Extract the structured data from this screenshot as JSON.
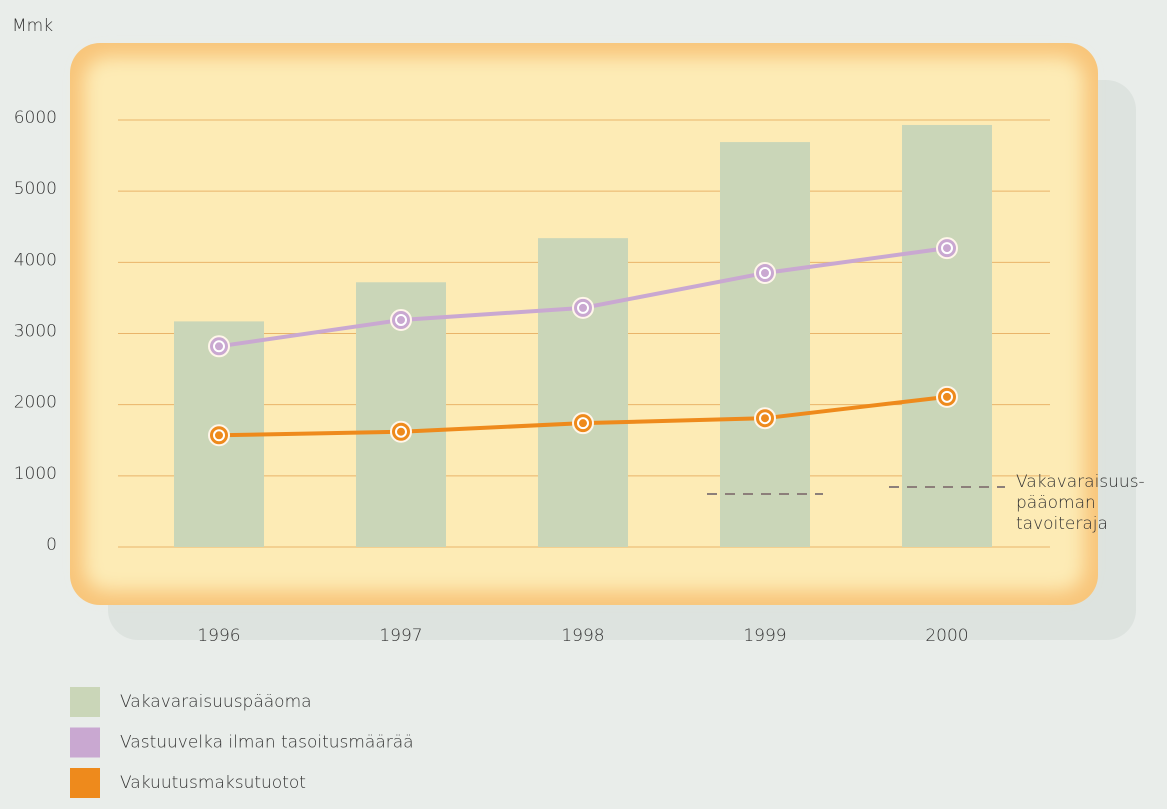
{
  "chart_data": {
    "type": "bar-line",
    "y_label": "Mmk",
    "categories": [
      "1996",
      "1997",
      "1998",
      "1999",
      "2000"
    ],
    "ylim": [
      0,
      6000
    ],
    "yticks": [
      0,
      1000,
      2000,
      3000,
      4000,
      5000,
      6000
    ],
    "grid": true,
    "series": [
      {
        "name": "Vakavaraisuuspääoma",
        "kind": "bar",
        "color": "#cad6b8",
        "values": [
          3170,
          3720,
          4340,
          5690,
          5930
        ]
      },
      {
        "name": "Vastuuvelka ilman tasoitusmäärää",
        "kind": "line",
        "color": "#c9a8d1",
        "values": [
          2820,
          3190,
          3360,
          3850,
          4200
        ]
      },
      {
        "name": "Vakuutusmaksutuotot",
        "kind": "line",
        "color": "#ee8a1c",
        "values": [
          1570,
          1620,
          1740,
          1810,
          2110
        ]
      }
    ],
    "reference": {
      "color": "#8c7f7a",
      "values": [
        null,
        null,
        null,
        745,
        843
      ],
      "label_lines": [
        "Vakavaraisuus-",
        "pääoman",
        "tavoiteraja"
      ]
    }
  }
}
